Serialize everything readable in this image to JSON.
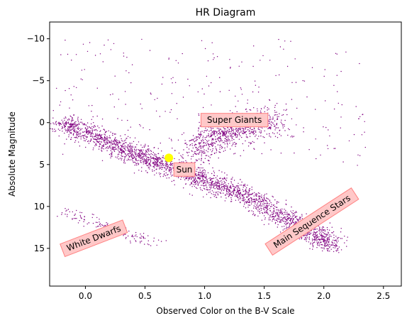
{
  "chart_data": {
    "type": "scatter",
    "title": "HR Diagram",
    "xlabel": "Observed Color on the B-V Scale",
    "ylabel": "Absolute Magnitude",
    "xlim": [
      -0.3,
      2.65
    ],
    "ylim": [
      19.5,
      -12
    ],
    "y_inverted": true,
    "grid": false,
    "xticks": [
      0.0,
      0.5,
      1.0,
      1.5,
      2.0,
      2.5
    ],
    "xtick_labels": [
      "0.0",
      "0.5",
      "1.0",
      "1.5",
      "2.0",
      "2.5"
    ],
    "yticks": [
      -10,
      -5,
      0,
      5,
      10,
      15
    ],
    "ytick_labels": [
      "−10",
      "−5",
      "0",
      "5",
      "10",
      "15"
    ],
    "point_color": "#800080",
    "series": [
      {
        "population": "main-sequence",
        "x": [
          -0.2,
          -0.1,
          0.0,
          0.1,
          0.2,
          0.3,
          0.4,
          0.5,
          0.6,
          0.7,
          0.8,
          0.9,
          1.0,
          1.1,
          1.2,
          1.3,
          1.4,
          1.5,
          1.6,
          1.7,
          1.8,
          1.9,
          2.0,
          2.1
        ],
        "y": [
          0.0,
          0.5,
          1.2,
          1.8,
          2.4,
          3.0,
          3.6,
          4.2,
          4.8,
          5.2,
          5.8,
          6.3,
          6.8,
          7.4,
          7.9,
          8.5,
          9.2,
          10.0,
          10.8,
          11.6,
          12.4,
          13.2,
          14.0,
          14.8
        ]
      },
      {
        "population": "giants",
        "x": [
          0.9,
          1.0,
          1.1,
          1.2,
          1.3,
          1.4,
          1.5,
          1.6
        ],
        "y": [
          4.0,
          2.5,
          1.5,
          1.0,
          0.5,
          0.2,
          0.0,
          -0.3
        ]
      },
      {
        "population": "white-dwarfs",
        "x": [
          -0.2,
          0.0,
          0.2,
          0.4,
          0.6
        ],
        "y": [
          10.5,
          11.5,
          12.5,
          13.5,
          14.5
        ]
      }
    ],
    "highlight": {
      "label": "Sun",
      "x": 0.7,
      "y": 4.2,
      "color": "#ffff00"
    },
    "annotations": [
      {
        "text": "Super Giants",
        "x": 1.25,
        "y": -0.3,
        "rotation": 0
      },
      {
        "text": "Sun",
        "x": 0.83,
        "y": 5.6,
        "rotation": 0
      },
      {
        "text": "Main Sequence Stars",
        "x": 1.9,
        "y": 11.8,
        "rotation": -33
      },
      {
        "text": "White Dwarfs",
        "x": 0.07,
        "y": 13.8,
        "rotation": -21
      }
    ],
    "annotation_style": {
      "fill": "#ffc8c8",
      "stroke": "#ff8080"
    }
  }
}
